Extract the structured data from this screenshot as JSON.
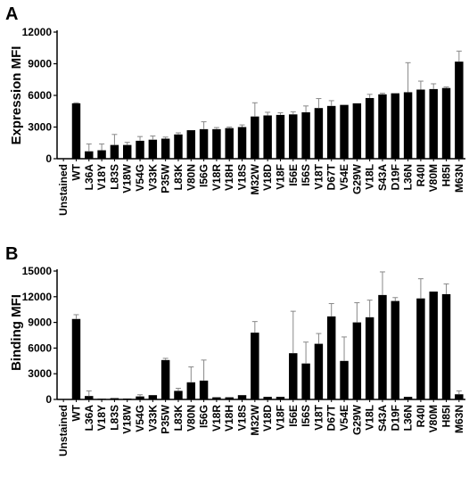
{
  "chart_data": [
    {
      "type": "bar",
      "panel": "A",
      "ylabel": "Expression MFI",
      "ylim": [
        0,
        12000
      ],
      "yticks": [
        0,
        3000,
        6000,
        9000,
        12000
      ],
      "categories": [
        "Unstained",
        "WT",
        "L36A",
        "V18Y",
        "L83S",
        "V18W",
        "V54G",
        "V33K",
        "P35W",
        "L83K",
        "V80N",
        "I56G",
        "V18R",
        "V18H",
        "V18S",
        "M32W",
        "V18D",
        "V18F",
        "I56E",
        "I56S",
        "V18T",
        "D67T",
        "V54E",
        "G29W",
        "V18L",
        "S43A",
        "D19F",
        "L36N",
        "R40I",
        "V80M",
        "H85I",
        "M63N"
      ],
      "values": [
        40,
        5250,
        700,
        800,
        1300,
        1300,
        1700,
        1800,
        1900,
        2300,
        2700,
        2800,
        2800,
        2900,
        3000,
        4000,
        4100,
        4150,
        4200,
        4400,
        4800,
        5000,
        5100,
        5250,
        5750,
        6100,
        6200,
        6300,
        6550,
        6600,
        6700,
        9200
      ],
      "errors": [
        0,
        50,
        700,
        600,
        1000,
        250,
        400,
        350,
        150,
        150,
        0,
        700,
        150,
        100,
        200,
        1300,
        300,
        200,
        250,
        600,
        900,
        500,
        0,
        0,
        350,
        100,
        0,
        2800,
        800,
        500,
        100,
        1000
      ]
    },
    {
      "type": "bar",
      "panel": "B",
      "ylabel": "Binding MFI",
      "ylim": [
        0,
        15000
      ],
      "yticks": [
        0,
        3000,
        6000,
        9000,
        12000,
        15000
      ],
      "categories": [
        "Unstained",
        "WT",
        "L36A",
        "V18Y",
        "L83S",
        "V18W",
        "V54G",
        "V33K",
        "P35W",
        "L83K",
        "V80N",
        "I56G",
        "V18R",
        "V18H",
        "V18S",
        "M32W",
        "V18D",
        "V18F",
        "I56E",
        "I56S",
        "V18T",
        "D67T",
        "V54E",
        "G29W",
        "V18L",
        "S43A",
        "D19F",
        "L36N",
        "R40I",
        "V80M",
        "H85I",
        "M63N"
      ],
      "values": [
        50,
        9400,
        400,
        80,
        150,
        100,
        350,
        500,
        4600,
        1000,
        2000,
        2200,
        250,
        250,
        500,
        7800,
        300,
        300,
        5400,
        4200,
        6500,
        9700,
        4500,
        9000,
        9600,
        12200,
        11500,
        300,
        11800,
        12600,
        12300,
        600
      ],
      "errors": [
        0,
        500,
        600,
        0,
        0,
        0,
        200,
        0,
        200,
        300,
        1800,
        2400,
        0,
        0,
        0,
        1300,
        0,
        0,
        4900,
        2500,
        1200,
        1500,
        2800,
        2300,
        2000,
        2700,
        400,
        0,
        2300,
        0,
        1200,
        400
      ]
    }
  ]
}
